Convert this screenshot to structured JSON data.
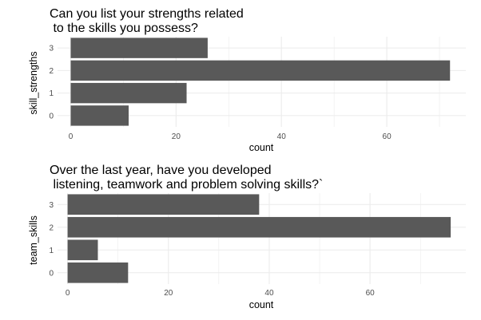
{
  "chart_data": [
    {
      "type": "bar",
      "orientation": "horizontal",
      "title": [
        "Can you list your strengths related",
        " to the skills you possess?"
      ],
      "xlabel": "count",
      "ylabel": "skill_strengths",
      "categories": [
        "0",
        "1",
        "2",
        "3"
      ],
      "values": [
        11,
        22,
        72,
        26
      ],
      "xticks": [
        0,
        20,
        40,
        60
      ],
      "xlim": [
        -2.5,
        75
      ],
      "grid": true,
      "bar_color": "#595959",
      "grid_color": "#ebebeb"
    },
    {
      "type": "bar",
      "orientation": "horizontal",
      "title": [
        "Over the last year, have you developed",
        " listening, teamwork and problem solving skills?`"
      ],
      "xlabel": "count",
      "ylabel": "team_skills",
      "categories": [
        "0",
        "1",
        "2",
        "3"
      ],
      "values": [
        12,
        6,
        76,
        38
      ],
      "xticks": [
        0,
        20,
        40,
        60
      ],
      "xlim": [
        -2,
        79
      ],
      "grid": true,
      "bar_color": "#595959",
      "grid_color": "#ebebeb"
    }
  ]
}
